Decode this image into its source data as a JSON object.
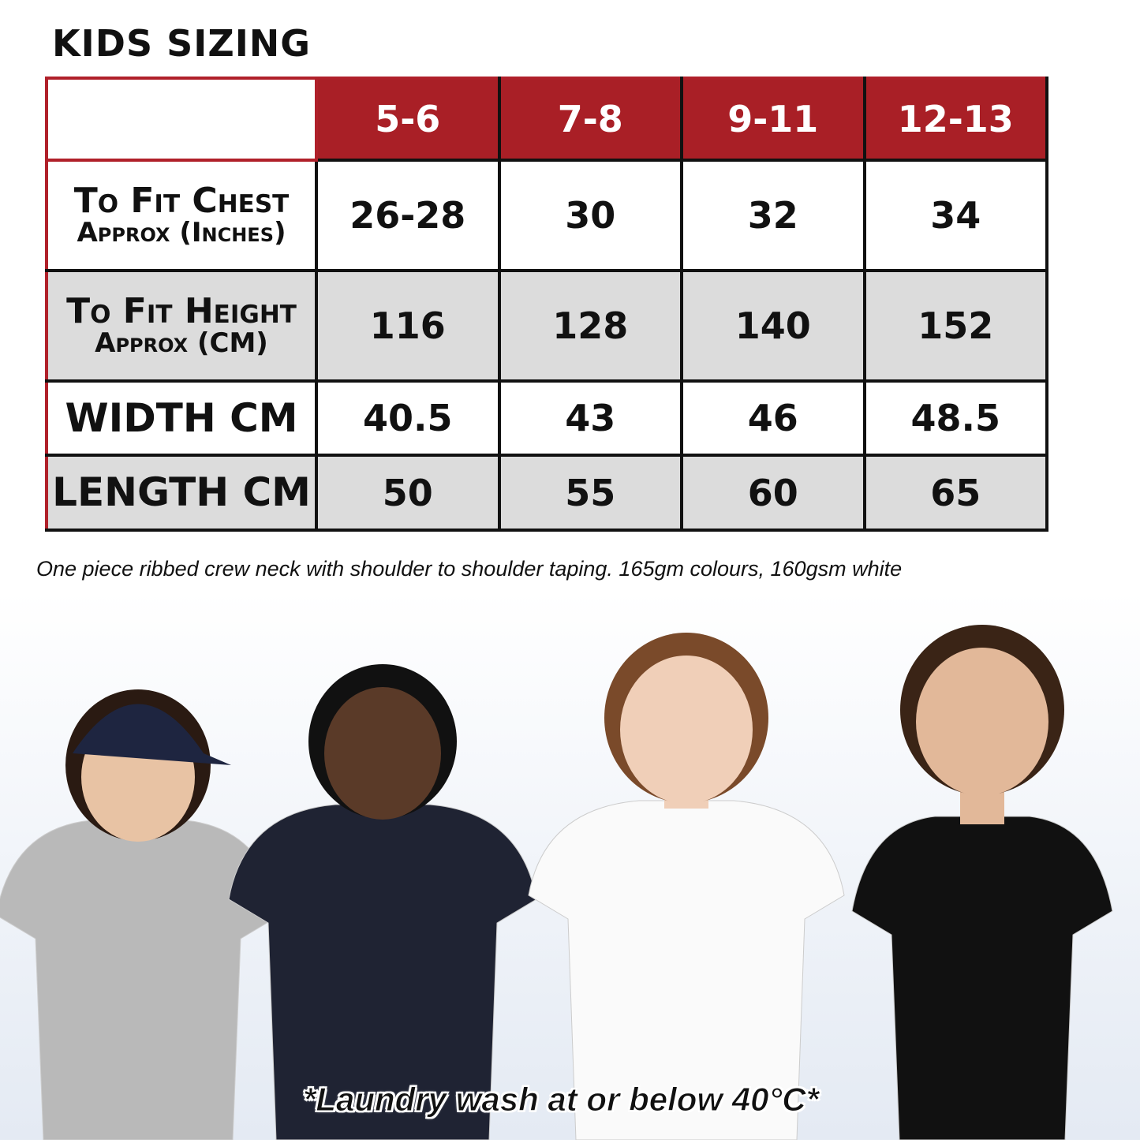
{
  "title": "KIDS SIZING",
  "table": {
    "headers": [
      "",
      "5-6",
      "7-8",
      "9-11",
      "12-13"
    ],
    "rows": [
      {
        "label1": "To Fit Chest",
        "label2": "Approx (Inches)",
        "values": [
          "26-28",
          "30",
          "32",
          "34"
        ]
      },
      {
        "label1": "To Fit Height",
        "label2": "Approx (CM)",
        "values": [
          "116",
          "128",
          "140",
          "152"
        ]
      },
      {
        "label1": "WIDTH CM",
        "label2": "",
        "values": [
          "40.5",
          "43",
          "46",
          "48.5"
        ]
      },
      {
        "label1": "LENGTH CM",
        "label2": "",
        "values": [
          "50",
          "55",
          "60",
          "65"
        ]
      }
    ]
  },
  "caption": "One piece ribbed crew neck with shoulder to shoulder taping. 165gm colours, 160gsm white",
  "wash_note": "*Laundry wash at or below 40°C*",
  "colors": {
    "header_red": "#a91f26",
    "row_grey": "#dcdcdc",
    "border": "#111111"
  },
  "models": [
    {
      "shirt": "#b9b9b9",
      "hair": "#2a1a12",
      "skin": "#e8c3a4",
      "cap": "#1e2540"
    },
    {
      "shirt": "#1f2333",
      "hair": "#111111",
      "skin": "#5a3a28"
    },
    {
      "shirt": "#fafafa",
      "hair": "#7a4a2a",
      "skin": "#f0cfb8"
    },
    {
      "shirt": "#111111",
      "hair": "#3a2416",
      "skin": "#e2b899"
    }
  ]
}
